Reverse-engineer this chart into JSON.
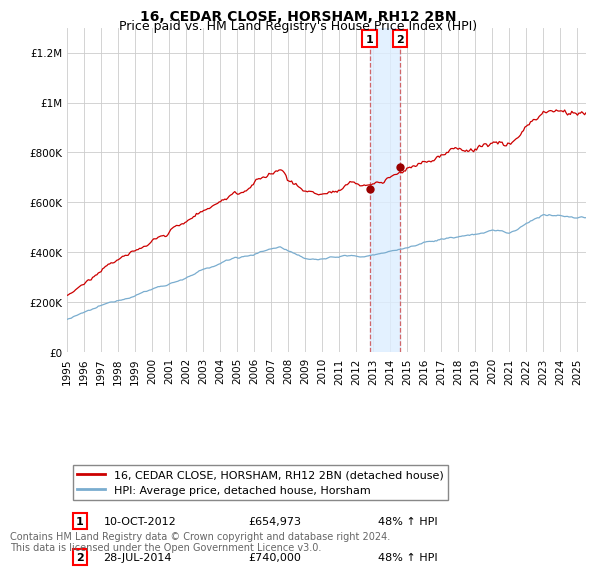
{
  "title": "16, CEDAR CLOSE, HORSHAM, RH12 2BN",
  "subtitle": "Price paid vs. HM Land Registry's House Price Index (HPI)",
  "ylabel_ticks": [
    "£0",
    "£200K",
    "£400K",
    "£600K",
    "£800K",
    "£1M",
    "£1.2M"
  ],
  "ytick_values": [
    0,
    200000,
    400000,
    600000,
    800000,
    1000000,
    1200000
  ],
  "ylim": [
    0,
    1300000
  ],
  "xlim_start": 1995.0,
  "xlim_end": 2025.5,
  "transaction1": {
    "date_num": 2012.78,
    "price": 654973,
    "label": "1",
    "date_str": "10-OCT-2012",
    "price_str": "£654,973",
    "hpi_str": "48% ↑ HPI"
  },
  "transaction2": {
    "date_num": 2014.57,
    "price": 740000,
    "label": "2",
    "date_str": "28-JUL-2014",
    "price_str": "£740,000",
    "hpi_str": "48% ↑ HPI"
  },
  "legend_line1": "16, CEDAR CLOSE, HORSHAM, RH12 2BN (detached house)",
  "legend_line2": "HPI: Average price, detached house, Horsham",
  "footnote": "Contains HM Land Registry data © Crown copyright and database right 2024.\nThis data is licensed under the Open Government Licence v3.0.",
  "line_color_red": "#cc0000",
  "line_color_blue": "#7aadcf",
  "background_color": "#ffffff",
  "grid_color": "#cccccc",
  "shade_color": "#ddeeff",
  "marker_color_red": "#990000",
  "title_fontsize": 10,
  "subtitle_fontsize": 9,
  "tick_fontsize": 7.5,
  "legend_fontsize": 8,
  "footnote_fontsize": 7
}
